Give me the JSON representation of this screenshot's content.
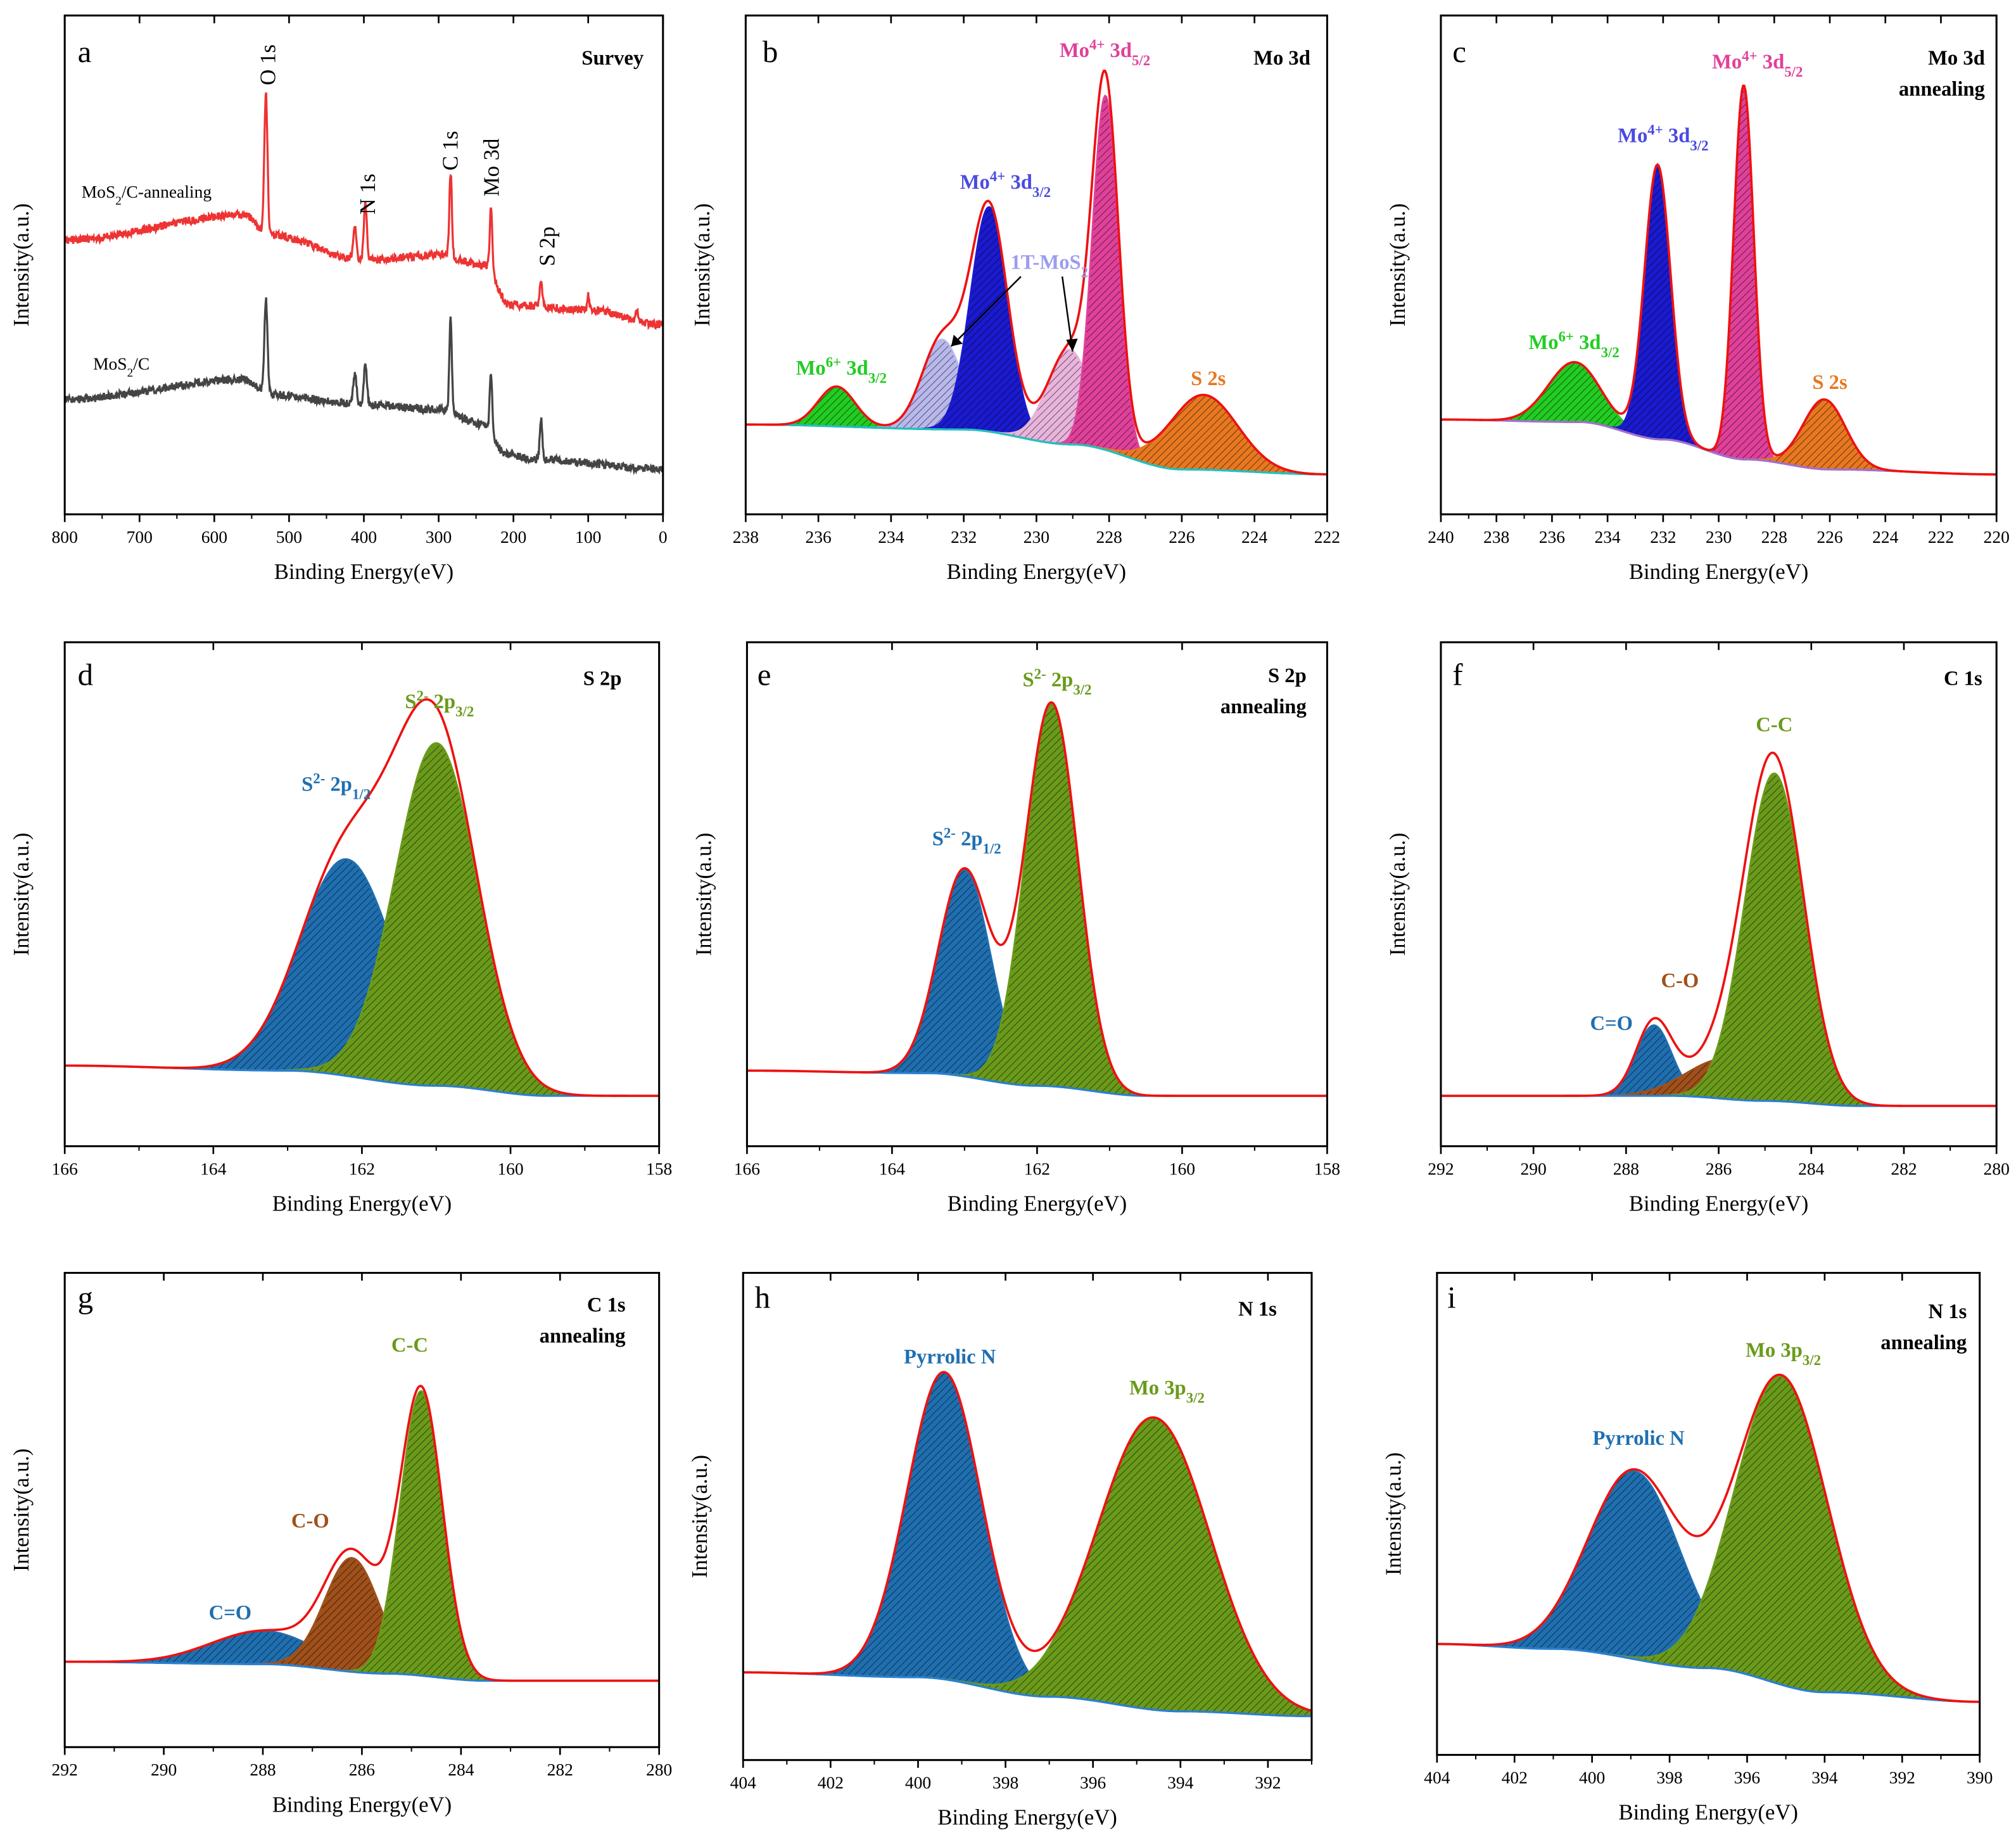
{
  "chart_data": [
    {
      "id": "a",
      "type": "line",
      "letter": "a",
      "title": [
        "Survey"
      ],
      "xlabel": "Binding Energy(eV)",
      "ylabel": "Intensity(a.u.)",
      "xlim": [
        800,
        0
      ],
      "ylim": [
        0,
        100
      ],
      "xticks": [
        800,
        700,
        600,
        500,
        400,
        300,
        200,
        100,
        0
      ],
      "series": [
        {
          "name": "MoS2/C-annealing",
          "label": [
            {
              "t": "MoS"
            },
            {
              "t": "2",
              "s": "sub"
            },
            {
              "t": "/C-annealing"
            }
          ],
          "color": "#ee3333",
          "baseline": [
            [
              800,
              55
            ],
            [
              560,
              60
            ],
            [
              525,
              56
            ],
            [
              400,
              51
            ],
            [
              300,
              52
            ],
            [
              240,
              50
            ],
            [
              205,
              42
            ],
            [
              100,
              41
            ],
            [
              0,
              38
            ]
          ],
          "peaks": [
            [
              531,
              28,
              5
            ],
            [
              412,
              7,
              5
            ],
            [
              398,
              11,
              5
            ],
            [
              284,
              17,
              4
            ],
            [
              230,
              13,
              4
            ],
            [
              163,
              5,
              4
            ],
            [
              100,
              3,
              3
            ],
            [
              35,
              2,
              4
            ]
          ]
        },
        {
          "name": "MoS2/C",
          "label": [
            {
              "t": "MoS"
            },
            {
              "t": "2",
              "s": "sub"
            },
            {
              "t": "/C"
            }
          ],
          "color": "#444444",
          "baseline": [
            [
              800,
              23
            ],
            [
              560,
              27
            ],
            [
              525,
              24
            ],
            [
              400,
              22
            ],
            [
              300,
              21
            ],
            [
              240,
              18
            ],
            [
              210,
              12
            ],
            [
              170,
              11
            ],
            [
              0,
              9
            ]
          ],
          "peaks": [
            [
              531,
              19,
              5
            ],
            [
              412,
              6,
              5
            ],
            [
              398,
              8,
              5
            ],
            [
              284,
              19,
              4
            ],
            [
              230,
              12,
              4
            ],
            [
              163,
              8,
              4
            ]
          ]
        }
      ],
      "peak_labels": [
        "O 1s",
        "N 1s",
        "C 1s",
        "Mo 3d",
        "S 2p"
      ]
    },
    {
      "id": "b",
      "type": "area",
      "letter": "b",
      "title": [
        "Mo 3d"
      ],
      "xlabel": "Binding Energy(eV)",
      "ylabel": "Intensity(a.u.)",
      "xlim": [
        238,
        222
      ],
      "ylim": [
        0,
        100
      ],
      "xticks": [
        238,
        236,
        234,
        232,
        230,
        228,
        226,
        224,
        222
      ],
      "background": [
        [
          238,
          18
        ],
        [
          232,
          17
        ],
        [
          229,
          14
        ],
        [
          226,
          9
        ],
        [
          222,
          8
        ]
      ],
      "background_color": "#20c0c0",
      "envelope_color": "#ee1111",
      "components": [
        {
          "name": "Mo6+ 3d3/2",
          "center": 235.5,
          "fwhm": 1.2,
          "height": 8,
          "color": "#22cc22"
        },
        {
          "name": "1T-MoS2",
          "center": 232.6,
          "fwhm": 1.3,
          "height": 18,
          "color": "#b8b8ec"
        },
        {
          "name": "Mo4+ 3d3/2",
          "center": 231.3,
          "fwhm": 1.2,
          "height": 45,
          "color": "#1a1ad0"
        },
        {
          "name": "1T-MoS2",
          "center": 229.1,
          "fwhm": 1.4,
          "height": 19,
          "color": "#e8b4dc"
        },
        {
          "name": "Mo4+ 3d5/2",
          "center": 228.1,
          "fwhm": 0.85,
          "height": 71,
          "color": "#e0409a"
        },
        {
          "name": "S 2s",
          "center": 225.4,
          "fwhm": 2.2,
          "height": 15,
          "color": "#e87820"
        }
      ],
      "labels": [
        {
          "color": "#22cc22",
          "seg": [
            {
              "t": "Mo"
            },
            {
              "t": "6+",
              "s": "sup"
            },
            {
              "t": " 3d"
            },
            {
              "t": "3/2",
              "s": "sub"
            }
          ]
        },
        {
          "color": "#4a4ae0",
          "seg": [
            {
              "t": "Mo"
            },
            {
              "t": "4+",
              "s": "sup"
            },
            {
              "t": " 3d"
            },
            {
              "t": "3/2",
              "s": "sub"
            }
          ]
        },
        {
          "color": "#e0409a",
          "seg": [
            {
              "t": "Mo"
            },
            {
              "t": "4+",
              "s": "sup"
            },
            {
              "t": " 3d"
            },
            {
              "t": "5/2",
              "s": "sub"
            }
          ]
        },
        {
          "color": "#9c9cf0",
          "seg": [
            {
              "t": "1T-MoS"
            },
            {
              "t": "2",
              "s": "sub"
            }
          ]
        },
        {
          "color": "#e87820",
          "seg": [
            {
              "t": "S 2s"
            }
          ]
        }
      ]
    },
    {
      "id": "c",
      "type": "area",
      "letter": "c",
      "title": [
        "Mo 3d",
        "annealing"
      ],
      "xlabel": "Binding Energy(eV)",
      "ylabel": "Intensity(a.u.)",
      "xlim": [
        240,
        220
      ],
      "ylim": [
        0,
        100
      ],
      "xticks": [
        240,
        238,
        236,
        234,
        232,
        230,
        228,
        226,
        224,
        222,
        220
      ],
      "background": [
        [
          240,
          19
        ],
        [
          235,
          18.5
        ],
        [
          232,
          15
        ],
        [
          229,
          11
        ],
        [
          226,
          9
        ],
        [
          220,
          8
        ]
      ],
      "background_color": "#a070d0",
      "envelope_color": "#ee1111",
      "components": [
        {
          "name": "Mo6+ 3d3/2",
          "center": 235.2,
          "fwhm": 2.2,
          "height": 12,
          "color": "#22cc22"
        },
        {
          "name": "Mo4+ 3d3/2",
          "center": 232.2,
          "fwhm": 1.1,
          "height": 55,
          "color": "#1a1ad0"
        },
        {
          "name": "Mo4+ 3d5/2",
          "center": 229.1,
          "fwhm": 0.85,
          "height": 75,
          "color": "#e0409a"
        },
        {
          "name": "S 2s",
          "center": 226.2,
          "fwhm": 1.8,
          "height": 14,
          "color": "#e87820"
        }
      ],
      "labels": [
        {
          "color": "#22cc22",
          "seg": [
            {
              "t": "Mo"
            },
            {
              "t": "6+",
              "s": "sup"
            },
            {
              "t": " 3d"
            },
            {
              "t": "3/2",
              "s": "sub"
            }
          ]
        },
        {
          "color": "#4a4ae0",
          "seg": [
            {
              "t": "Mo"
            },
            {
              "t": "4+",
              "s": "sup"
            },
            {
              "t": " 3d"
            },
            {
              "t": "3/2",
              "s": "sub"
            }
          ]
        },
        {
          "color": "#e0409a",
          "seg": [
            {
              "t": "Mo"
            },
            {
              "t": "4+",
              "s": "sup"
            },
            {
              "t": " 3d"
            },
            {
              "t": "5/2",
              "s": "sub"
            }
          ]
        },
        {
          "color": "#e87820",
          "seg": [
            {
              "t": "S 2s"
            }
          ]
        }
      ]
    },
    {
      "id": "d",
      "type": "area",
      "letter": "d",
      "title": [
        "S 2p"
      ],
      "xlabel": "Binding Energy(eV)",
      "ylabel": "Intensity(a.u.)",
      "xlim": [
        166,
        158
      ],
      "ylim": [
        0,
        100
      ],
      "xticks": [
        166,
        164,
        162,
        160,
        158
      ],
      "background": [
        [
          166,
          16
        ],
        [
          163,
          15
        ],
        [
          161,
          12
        ],
        [
          159.5,
          10
        ],
        [
          158,
          10
        ]
      ],
      "background_color": "#2a7fd0",
      "envelope_color": "#ee1111",
      "components": [
        {
          "name": "S2- 2p1/2",
          "center": 162.2,
          "fwhm": 1.5,
          "height": 43,
          "color": "#1f6fb0"
        },
        {
          "name": "S2- 2p3/2",
          "center": 161.0,
          "fwhm": 1.3,
          "height": 68,
          "color": "#6a9a1a"
        }
      ],
      "labels": [
        {
          "color": "#1f6fb0",
          "seg": [
            {
              "t": "S"
            },
            {
              "t": "2-",
              "s": "sup"
            },
            {
              "t": " 2p"
            },
            {
              "t": "1/2",
              "s": "sub"
            }
          ]
        },
        {
          "color": "#6a9a1a",
          "seg": [
            {
              "t": "S"
            },
            {
              "t": "2-",
              "s": "sup"
            },
            {
              "t": " 2p"
            },
            {
              "t": "3/2",
              "s": "sub"
            }
          ]
        }
      ]
    },
    {
      "id": "e",
      "type": "area",
      "letter": "e",
      "title": [
        "S 2p",
        "annealing"
      ],
      "xlabel": "Binding Energy(eV)",
      "ylabel": "Intensity(a.u.)",
      "xlim": [
        166,
        158
      ],
      "ylim": [
        0,
        100
      ],
      "xticks": [
        166,
        164,
        162,
        160,
        158
      ],
      "background": [
        [
          166,
          15
        ],
        [
          163.5,
          14.5
        ],
        [
          162,
          12
        ],
        [
          160.5,
          10
        ],
        [
          158,
          10
        ]
      ],
      "background_color": "#2a7fd0",
      "envelope_color": "#ee1111",
      "components": [
        {
          "name": "S2- 2p1/2",
          "center": 163.0,
          "fwhm": 0.85,
          "height": 41,
          "color": "#1f6fb0"
        },
        {
          "name": "S2- 2p3/2",
          "center": 161.8,
          "fwhm": 0.85,
          "height": 76,
          "color": "#6a9a1a"
        }
      ],
      "labels": [
        {
          "color": "#1f6fb0",
          "seg": [
            {
              "t": "S"
            },
            {
              "t": "2-",
              "s": "sup"
            },
            {
              "t": " 2p"
            },
            {
              "t": "1/2",
              "s": "sub"
            }
          ]
        },
        {
          "color": "#6a9a1a",
          "seg": [
            {
              "t": "S"
            },
            {
              "t": "2-",
              "s": "sup"
            },
            {
              "t": " 2p"
            },
            {
              "t": "3/2",
              "s": "sub"
            }
          ]
        }
      ]
    },
    {
      "id": "f",
      "type": "area",
      "letter": "f",
      "title": [
        "C 1s"
      ],
      "xlabel": "Binding Energy(eV)",
      "ylabel": "Intensity(a.u.)",
      "xlim": [
        292,
        280
      ],
      "ylim": [
        0,
        100
      ],
      "xticks": [
        292,
        290,
        288,
        286,
        284,
        282,
        280
      ],
      "background": [
        [
          292,
          10
        ],
        [
          287,
          10
        ],
        [
          285,
          9
        ],
        [
          283,
          8
        ],
        [
          280,
          8
        ]
      ],
      "background_color": "#2a7fd0",
      "envelope_color": "#ee1111",
      "components": [
        {
          "name": "C=O",
          "center": 287.4,
          "fwhm": 0.9,
          "height": 14,
          "color": "#1f6fb0"
        },
        {
          "name": "C-O",
          "center": 285.8,
          "fwhm": 2.0,
          "height": 8,
          "color": "#a0501a"
        },
        {
          "name": "C-C",
          "center": 284.8,
          "fwhm": 1.5,
          "height": 65,
          "color": "#6a9a1a"
        }
      ],
      "labels": [
        {
          "color": "#6a9a1a",
          "seg": [
            {
              "t": "C-C"
            }
          ]
        },
        {
          "color": "#a0501a",
          "seg": [
            {
              "t": "C-O"
            }
          ]
        },
        {
          "color": "#1f6fb0",
          "seg": [
            {
              "t": "C=O"
            }
          ]
        }
      ]
    },
    {
      "id": "g",
      "type": "area",
      "letter": "g",
      "title": [
        "C 1s",
        "annealing"
      ],
      "xlabel": "Binding Energy(eV)",
      "ylabel": "Intensity(a.u.)",
      "xlim": [
        292,
        280
      ],
      "ylim": [
        0,
        100
      ],
      "xticks": [
        292,
        290,
        288,
        286,
        284,
        282,
        280
      ],
      "background": [
        [
          292,
          18
        ],
        [
          288,
          17.5
        ],
        [
          285.5,
          15.5
        ],
        [
          283.5,
          14
        ],
        [
          280,
          14
        ]
      ],
      "background_color": "#2a7fd0",
      "envelope_color": "#ee1111",
      "components": [
        {
          "name": "C=O",
          "center": 288.0,
          "fwhm": 2.5,
          "height": 7,
          "color": "#1f6fb0"
        },
        {
          "name": "C-O",
          "center": 286.2,
          "fwhm": 1.3,
          "height": 24,
          "color": "#a0501a"
        },
        {
          "name": "C-C",
          "center": 284.8,
          "fwhm": 1.0,
          "height": 60,
          "color": "#6a9a1a"
        }
      ],
      "labels": [
        {
          "color": "#6a9a1a",
          "seg": [
            {
              "t": "C-C"
            }
          ]
        },
        {
          "color": "#a0501a",
          "seg": [
            {
              "t": "C-O"
            }
          ]
        },
        {
          "color": "#1f6fb0",
          "seg": [
            {
              "t": "C=O"
            }
          ]
        }
      ]
    },
    {
      "id": "h",
      "type": "area",
      "letter": "h",
      "title": [
        "N 1s"
      ],
      "xlabel": "Binding Energy(eV)",
      "ylabel": "Intensity(a.u.)",
      "xlim": [
        404,
        391
      ],
      "ylim": [
        0,
        100
      ],
      "xticks": [
        404,
        402,
        400,
        398,
        396,
        394,
        392
      ],
      "background": [
        [
          404,
          18
        ],
        [
          400,
          17
        ],
        [
          397,
          13
        ],
        [
          394,
          10
        ],
        [
          391,
          9
        ]
      ],
      "background_color": "#2a7fd0",
      "envelope_color": "#ee1111",
      "components": [
        {
          "name": "Pyrrolic N",
          "center": 399.4,
          "fwhm": 2.0,
          "height": 63,
          "color": "#1f6fb0"
        },
        {
          "name": "Mo 3p3/2",
          "center": 394.6,
          "fwhm": 3.0,
          "height": 60,
          "color": "#6a9a1a"
        }
      ],
      "labels": [
        {
          "color": "#1f6fb0",
          "seg": [
            {
              "t": "Pyrrolic N"
            }
          ]
        },
        {
          "color": "#6a9a1a",
          "seg": [
            {
              "t": "Mo 3p"
            },
            {
              "t": "3/2",
              "s": "sub"
            }
          ]
        }
      ]
    },
    {
      "id": "i",
      "type": "area",
      "letter": "i",
      "title": [
        "N 1s",
        "annealing"
      ],
      "xlabel": "Binding Energy(eV)",
      "ylabel": "Intensity(a.u.)",
      "xlim": [
        404,
        390
      ],
      "ylim": [
        0,
        100
      ],
      "xticks": [
        404,
        402,
        400,
        398,
        396,
        394,
        392,
        390
      ],
      "background": [
        [
          404,
          23
        ],
        [
          401,
          22
        ],
        [
          397,
          18
        ],
        [
          394,
          13
        ],
        [
          390,
          11
        ]
      ],
      "background_color": "#2a7fd0",
      "envelope_color": "#ee1111",
      "components": [
        {
          "name": "Pyrrolic N",
          "center": 398.9,
          "fwhm": 2.8,
          "height": 39,
          "color": "#1f6fb0"
        },
        {
          "name": "Mo 3p3/2",
          "center": 395.1,
          "fwhm": 2.8,
          "height": 64,
          "color": "#6a9a1a"
        }
      ],
      "labels": [
        {
          "color": "#1f6fb0",
          "seg": [
            {
              "t": "Pyrrolic N"
            }
          ]
        },
        {
          "color": "#6a9a1a",
          "seg": [
            {
              "t": "Mo 3p"
            },
            {
              "t": "3/2",
              "s": "sub"
            }
          ]
        }
      ]
    }
  ]
}
